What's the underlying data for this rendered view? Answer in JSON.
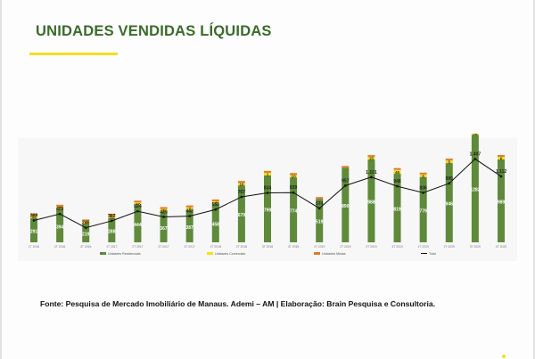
{
  "title": "UNIDADES VENDIDAS LÍQUIDAS",
  "source": "Fonte: Pesquisa de Mercado Imobiliário de Manaus.  Ademi – AM | Elaboração: Brain Pesquisa e Consultoria.",
  "colors": {
    "title": "#3a6b2a",
    "accent": "#f5de1e",
    "residential": "#5e8a3a",
    "commercial": "#f5de1e",
    "mixed": "#e07a28",
    "total": "#111111"
  },
  "chart_data": {
    "type": "bar",
    "stacked": true,
    "categories": [
      "1T 2016",
      "2T 2016",
      "4T 2016",
      "1T 2017",
      "2T 2017",
      "3T 2017",
      "4T 2017",
      "1T 2018",
      "2T 2018",
      "3T 2018",
      "4T 2018",
      "1T 2019",
      "2T 2019",
      "3T 2019",
      "4T 2019",
      "1T 2020",
      "2T 2020",
      "3T 2020",
      "4T 2020"
    ],
    "series": [
      {
        "name": "Unidades Residenciais",
        "values": [
          291,
          394,
          219,
          288,
          444,
          367,
          387,
          458,
          679,
          799,
          774,
          519,
          890,
          988,
          819,
          779,
          946,
          1282,
          989
        ]
      },
      {
        "name": "Unidades Comerciais",
        "values": [
          11,
          33,
          3,
          12,
          17,
          2,
          7,
          -4,
          16,
          1,
          10,
          null,
          null,
          15,
          46,
          6,
          5,
          26,
          6
        ]
      },
      {
        "name": "Unidades Mistas",
        "values": [
          null,
          null,
          null,
          null,
          null,
          null,
          null,
          null,
          null,
          null,
          null,
          null,
          null,
          null,
          null,
          null,
          null,
          null,
          null
        ]
      },
      {
        "name": "Total",
        "type": "line",
        "values": [
          369,
          479,
          246,
          362,
          524,
          429,
          442,
          553,
          767,
          834,
          839,
          574,
          957,
          1101,
          946,
          836,
          995,
          1407,
          1112
        ]
      }
    ],
    "total_labels": [
      "369",
      "479",
      "246",
      "362",
      "524",
      "429",
      "442",
      "553",
      "767",
      "834",
      "839",
      "574",
      "957",
      "1.101",
      "946",
      "836",
      "995",
      "1.407",
      "1.112"
    ],
    "legend_position": "bottom",
    "grid": false
  }
}
